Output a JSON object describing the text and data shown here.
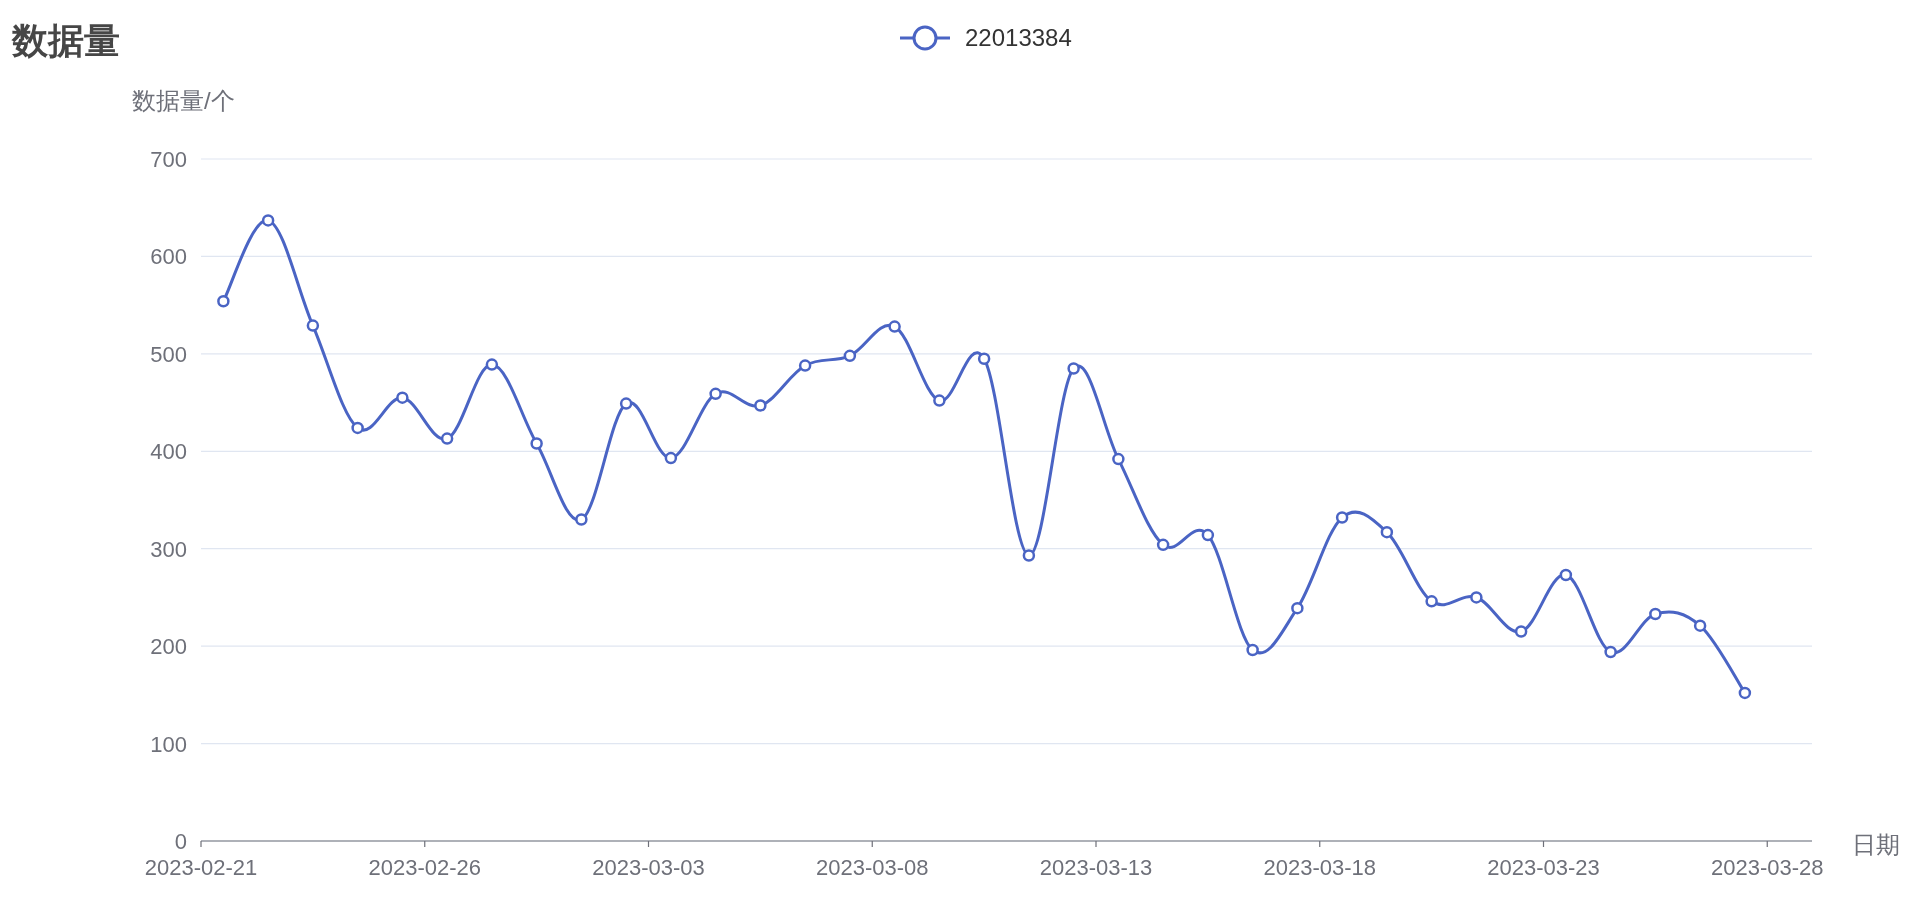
{
  "chart_data": {
    "type": "line",
    "title": "数据量",
    "xlabel": "日期",
    "ylabel": "数据量/个",
    "x": [
      "2023-02-21T12:00",
      "2023-02-22T12:00",
      "2023-02-23T12:00",
      "2023-02-24T12:00",
      "2023-02-25T12:00",
      "2023-02-26T12:00",
      "2023-02-27T12:00",
      "2023-02-28T12:00",
      "2023-03-01T12:00",
      "2023-03-02T12:00",
      "2023-03-03T12:00",
      "2023-03-04T12:00",
      "2023-03-05T12:00",
      "2023-03-06T12:00",
      "2023-03-07T12:00",
      "2023-03-08T12:00",
      "2023-03-09T12:00",
      "2023-03-10T12:00",
      "2023-03-11T12:00",
      "2023-03-12T12:00",
      "2023-03-13T12:00",
      "2023-03-14T12:00",
      "2023-03-15T12:00",
      "2023-03-16T12:00",
      "2023-03-17T12:00",
      "2023-03-18T12:00",
      "2023-03-19T12:00",
      "2023-03-20T12:00",
      "2023-03-21T12:00",
      "2023-03-22T12:00",
      "2023-03-23T12:00",
      "2023-03-24T12:00",
      "2023-03-25T12:00",
      "2023-03-26T12:00",
      "2023-03-27T12:00"
    ],
    "series": [
      {
        "name": "22013384",
        "color": "#4a64c4",
        "values": [
          554,
          637,
          529,
          424,
          455,
          413,
          489,
          408,
          330,
          449,
          393,
          459,
          447,
          488,
          498,
          528,
          452,
          495,
          293,
          485,
          392,
          304,
          314,
          196,
          239,
          332,
          317,
          246,
          250,
          215,
          273,
          194,
          233,
          221,
          152
        ]
      }
    ],
    "xlim": [
      "2023-02-21",
      "2023-03-29"
    ],
    "xticks": [
      "2023-02-21",
      "2023-02-26",
      "2023-03-03",
      "2023-03-08",
      "2023-03-13",
      "2023-03-18",
      "2023-03-23",
      "2023-03-28"
    ],
    "ylim": [
      0,
      700
    ],
    "yticks": [
      0,
      100,
      200,
      300,
      400,
      500,
      600,
      700
    ],
    "grid": "y",
    "legend": "top",
    "marker": "circle"
  }
}
